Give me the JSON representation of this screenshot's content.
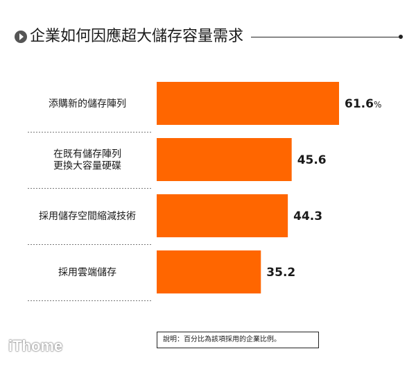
{
  "title": "企業如何因應超大儲存容量需求",
  "note": "說明：百分比為該項採用的企業比例。",
  "logo": "iThome",
  "colors": {
    "bar": "#ff6600",
    "bullet": "#555555"
  },
  "chart_data": {
    "type": "bar",
    "orientation": "horizontal",
    "categories": [
      [
        "添購新的儲存陣列"
      ],
      [
        "在既有儲存陣列",
        "更換大容量硬碟"
      ],
      [
        "採用儲存空間縮減技術"
      ],
      [
        "採用雲端儲存"
      ]
    ],
    "values": [
      61.6,
      45.6,
      44.3,
      35.2
    ],
    "value_labels": [
      "61.6",
      "45.6",
      "44.3",
      "35.2"
    ],
    "unit": "%",
    "xlim": [
      0,
      61.6
    ]
  }
}
